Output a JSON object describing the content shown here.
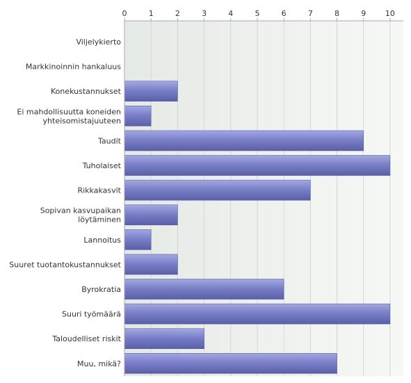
{
  "chart_data": {
    "type": "bar",
    "orientation": "horizontal",
    "categories": [
      "Viljelykierto",
      "Markkinoinnin hankaluus",
      "Konekustannukset",
      "Ei mahdollisuutta koneiden yhteisomistajuuteen",
      "Taudit",
      "Tuholaiset",
      "Rikkakasvit",
      "Sopivan kasvupaikan löytäminen",
      "Lannoitus",
      "Suuret tuotantokustannukset",
      "Byrokratia",
      "Suuri työmäärä",
      "Taloudelliset riskit",
      "Muu, mikä?"
    ],
    "values": [
      0,
      0,
      2,
      1,
      9,
      10,
      7,
      2,
      1,
      2,
      6,
      10,
      3,
      8
    ],
    "xlim": [
      0,
      10.5
    ],
    "ticks": [
      0,
      1,
      2,
      3,
      4,
      5,
      6,
      7,
      8,
      9,
      10
    ],
    "xaxis_position": "top",
    "grid": true,
    "legend": "none",
    "bar_color": "#7a80c8",
    "bar_color_light": "#a3a8e0",
    "bar_color_dark": "#5a5fa8",
    "plot_background_left": "#e6eae6",
    "plot_background_right": "#f6f8f6",
    "grid_color": "#d4d8d4",
    "axis_color": "#aaaaaa",
    "text_color": "#333333"
  }
}
